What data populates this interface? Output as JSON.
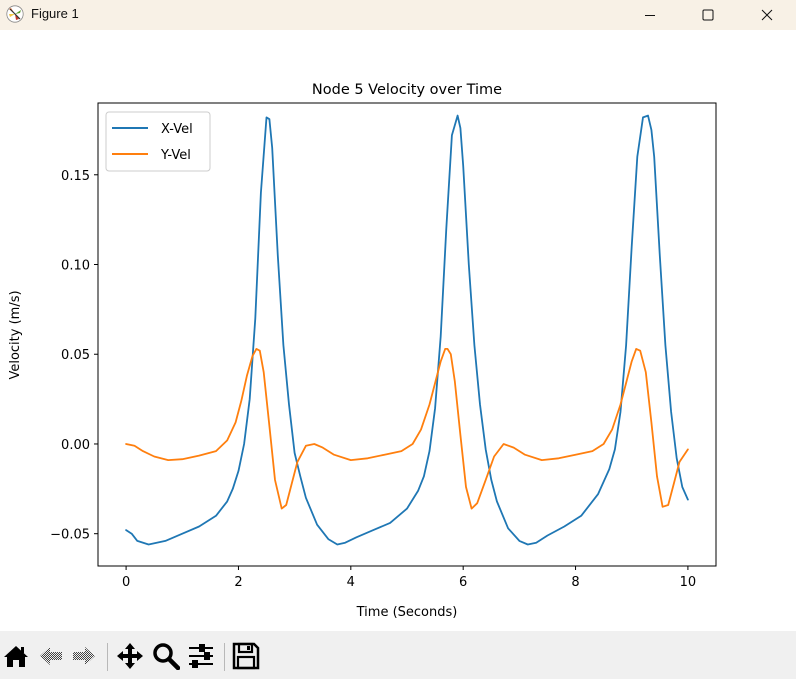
{
  "window": {
    "title": "Figure 1",
    "controls": {
      "minimize": "minimize-icon",
      "maximize": "maximize-icon",
      "close": "close-icon"
    }
  },
  "toolbar": {
    "buttons": [
      {
        "name": "home",
        "icon": "home-icon",
        "label": "Home"
      },
      {
        "name": "back",
        "icon": "back-arrow-icon",
        "label": "Back"
      },
      {
        "name": "forward",
        "icon": "forward-arrow-icon",
        "label": "Forward"
      },
      {
        "name": "pan",
        "icon": "move-icon",
        "label": "Pan"
      },
      {
        "name": "zoom",
        "icon": "zoom-icon",
        "label": "Zoom"
      },
      {
        "name": "configure",
        "icon": "sliders-icon",
        "label": "Configure subplots"
      },
      {
        "name": "save",
        "icon": "save-icon",
        "label": "Save"
      }
    ]
  },
  "colors": {
    "x_vel": "#1f77b4",
    "y_vel": "#ff7f0e",
    "titlebar": "#f8f1e6",
    "toolbar": "#f0f0f0"
  },
  "chart_data": {
    "type": "line",
    "title": "Node 5 Velocity over Time",
    "xlabel": "Time (Seconds)",
    "ylabel": "Velocity (m/s)",
    "xlim": [
      -0.5,
      10.5
    ],
    "ylim": [
      -0.068,
      0.19
    ],
    "xticks": [
      0,
      2,
      4,
      6,
      8,
      10
    ],
    "xtick_labels": [
      "0",
      "2",
      "4",
      "6",
      "8",
      "10"
    ],
    "yticks": [
      -0.05,
      0.0,
      0.05,
      0.1,
      0.15
    ],
    "ytick_labels": [
      "−0.05",
      "0.00",
      "0.05",
      "0.10",
      "0.15"
    ],
    "grid": false,
    "legend_position": "upper left",
    "series": [
      {
        "name": "X-Vel",
        "color": "#1f77b4",
        "x": [
          0,
          0.1,
          0.2,
          0.4,
          0.7,
          1.0,
          1.3,
          1.6,
          1.8,
          1.9,
          2.0,
          2.1,
          2.2,
          2.3,
          2.4,
          2.5,
          2.55,
          2.6,
          2.7,
          2.8,
          2.9,
          3.0,
          3.1,
          3.2,
          3.4,
          3.6,
          3.76,
          3.9,
          4.1,
          4.4,
          4.7,
          5.0,
          5.2,
          5.3,
          5.4,
          5.5,
          5.6,
          5.7,
          5.8,
          5.9,
          5.95,
          6.0,
          6.1,
          6.2,
          6.3,
          6.4,
          6.5,
          6.6,
          6.8,
          7.0,
          7.15,
          7.3,
          7.5,
          7.8,
          8.1,
          8.4,
          8.6,
          8.7,
          8.8,
          8.9,
          9.0,
          9.1,
          9.2,
          9.29,
          9.35,
          9.4,
          9.5,
          9.6,
          9.7,
          9.8,
          9.9,
          10.0
        ],
        "y": [
          -0.048,
          -0.05,
          -0.054,
          -0.056,
          -0.054,
          -0.05,
          -0.046,
          -0.04,
          -0.032,
          -0.025,
          -0.015,
          0.0,
          0.025,
          0.07,
          0.14,
          0.182,
          0.181,
          0.165,
          0.105,
          0.055,
          0.022,
          -0.005,
          -0.018,
          -0.03,
          -0.045,
          -0.053,
          -0.056,
          -0.055,
          -0.052,
          -0.048,
          -0.044,
          -0.036,
          -0.026,
          -0.018,
          -0.004,
          0.02,
          0.06,
          0.12,
          0.172,
          0.183,
          0.176,
          0.155,
          0.1,
          0.055,
          0.022,
          -0.003,
          -0.02,
          -0.032,
          -0.047,
          -0.054,
          -0.056,
          -0.055,
          -0.051,
          -0.046,
          -0.04,
          -0.028,
          -0.014,
          -0.003,
          0.018,
          0.055,
          0.11,
          0.16,
          0.182,
          0.183,
          0.175,
          0.16,
          0.105,
          0.055,
          0.018,
          -0.008,
          -0.024,
          -0.031
        ]
      },
      {
        "name": "Y-Vel",
        "color": "#ff7f0e",
        "x": [
          0,
          0.15,
          0.3,
          0.5,
          0.75,
          1.0,
          1.3,
          1.6,
          1.8,
          1.95,
          2.05,
          2.15,
          2.25,
          2.32,
          2.38,
          2.45,
          2.55,
          2.65,
          2.77,
          2.85,
          2.95,
          3.05,
          3.2,
          3.35,
          3.5,
          3.7,
          4.0,
          4.3,
          4.6,
          4.9,
          5.1,
          5.25,
          5.4,
          5.5,
          5.6,
          5.68,
          5.72,
          5.78,
          5.85,
          5.95,
          6.05,
          6.15,
          6.25,
          6.4,
          6.55,
          6.72,
          6.9,
          7.1,
          7.4,
          7.7,
          8.0,
          8.3,
          8.5,
          8.65,
          8.8,
          8.9,
          9.0,
          9.08,
          9.15,
          9.25,
          9.35,
          9.45,
          9.55,
          9.65,
          9.75,
          9.85,
          10.0
        ],
        "y": [
          0.0,
          -0.001,
          -0.004,
          -0.007,
          -0.009,
          -0.0085,
          -0.0065,
          -0.004,
          0.002,
          0.012,
          0.024,
          0.038,
          0.049,
          0.053,
          0.052,
          0.04,
          0.01,
          -0.02,
          -0.036,
          -0.034,
          -0.022,
          -0.01,
          -0.001,
          0.0,
          -0.002,
          -0.006,
          -0.009,
          -0.008,
          -0.006,
          -0.004,
          0.0,
          0.008,
          0.022,
          0.034,
          0.046,
          0.053,
          0.053,
          0.05,
          0.035,
          0.005,
          -0.024,
          -0.036,
          -0.033,
          -0.02,
          -0.007,
          0.0,
          -0.002,
          -0.006,
          -0.009,
          -0.008,
          -0.006,
          -0.004,
          0.0,
          0.008,
          0.022,
          0.034,
          0.046,
          0.053,
          0.052,
          0.04,
          0.012,
          -0.018,
          -0.035,
          -0.034,
          -0.022,
          -0.01,
          -0.003
        ]
      }
    ]
  }
}
